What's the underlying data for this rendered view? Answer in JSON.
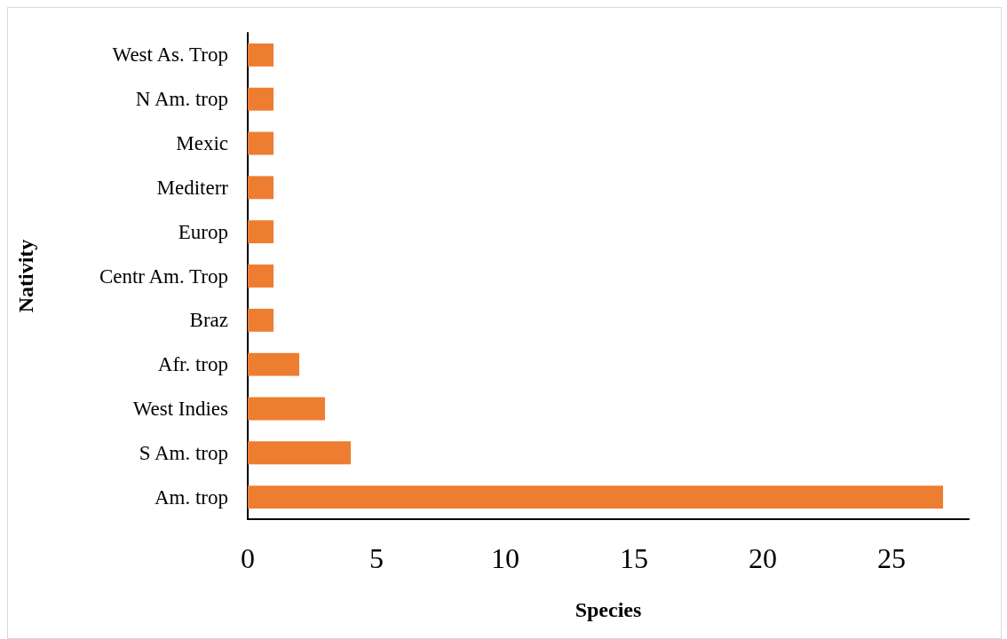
{
  "chart_data": {
    "type": "bar",
    "orientation": "horizontal",
    "categories": [
      "West As. Trop",
      "N Am. trop",
      "Mexic",
      "Mediterr",
      "Europ",
      "Centr Am. Trop",
      "Braz",
      "Afr. trop",
      "West Indies",
      "S Am. trop",
      "Am. trop"
    ],
    "values": [
      1,
      1,
      1,
      1,
      1,
      1,
      1,
      2,
      3,
      4,
      27
    ],
    "color": "#ed7d31",
    "xlim": [
      0,
      28
    ],
    "xticks": [
      0,
      5,
      10,
      15,
      20,
      25
    ],
    "xlabel": "Species",
    "ylabel": "Nativity"
  }
}
